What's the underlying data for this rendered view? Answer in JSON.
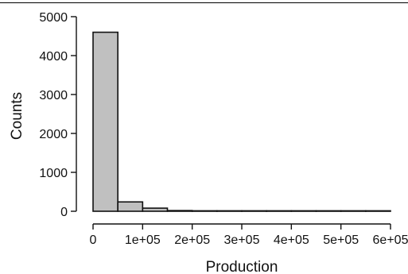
{
  "chart_data": {
    "type": "bar",
    "subtype": "histogram",
    "xlabel": "Production",
    "ylabel": "Counts",
    "xlim": [
      0,
      600000
    ],
    "ylim": [
      0,
      5000
    ],
    "x_ticks": [
      0,
      100000,
      200000,
      300000,
      400000,
      500000,
      600000
    ],
    "x_tick_labels": [
      "0",
      "1e+05",
      "2e+05",
      "3e+05",
      "4e+05",
      "5e+05",
      "6e+05"
    ],
    "y_ticks": [
      0,
      1000,
      2000,
      3000,
      4000,
      5000
    ],
    "y_tick_labels": [
      "0",
      "1000",
      "2000",
      "3000",
      "4000",
      "5000"
    ],
    "bins": [
      {
        "x0": 0,
        "x1": 50000,
        "count": 4600
      },
      {
        "x0": 50000,
        "x1": 100000,
        "count": 240
      },
      {
        "x0": 100000,
        "x1": 150000,
        "count": 80
      },
      {
        "x0": 150000,
        "x1": 200000,
        "count": 18
      },
      {
        "x0": 200000,
        "x1": 250000,
        "count": 8
      },
      {
        "x0": 250000,
        "x1": 300000,
        "count": 5
      },
      {
        "x0": 300000,
        "x1": 350000,
        "count": 4
      },
      {
        "x0": 350000,
        "x1": 400000,
        "count": 3
      },
      {
        "x0": 400000,
        "x1": 450000,
        "count": 2
      },
      {
        "x0": 450000,
        "x1": 500000,
        "count": 2
      },
      {
        "x0": 500000,
        "x1": 550000,
        "count": 1
      },
      {
        "x0": 550000,
        "x1": 600000,
        "count": 1
      }
    ],
    "grid": false,
    "bar_fill": "#c0c0c0",
    "bar_stroke": "#111111"
  }
}
